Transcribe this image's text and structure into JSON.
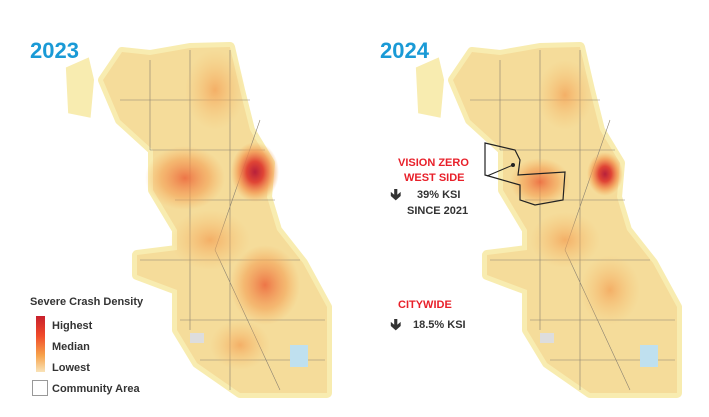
{
  "maps": [
    {
      "year": "2023"
    },
    {
      "year": "2024"
    }
  ],
  "legend": {
    "title": "Severe Crash Density",
    "highest": "Highest",
    "median": "Median",
    "lowest": "Lowest",
    "community_area": "Community Area"
  },
  "annotations": {
    "west_side_title_1": "VISION ZERO",
    "west_side_title_2": "WEST SIDE",
    "west_side_change": "39% KSI",
    "west_side_since": "SINCE 2021",
    "citywide_title": "CITYWIDE",
    "citywide_change": "18.5% KSI",
    "arrow_icon": "arrow-down-icon"
  },
  "colors": {
    "year": "#1a9ad6",
    "annotation_red": "#e8202a",
    "highest": "#c8202c",
    "lowest": "#f9e3b8",
    "base": "#f8ecb0"
  }
}
